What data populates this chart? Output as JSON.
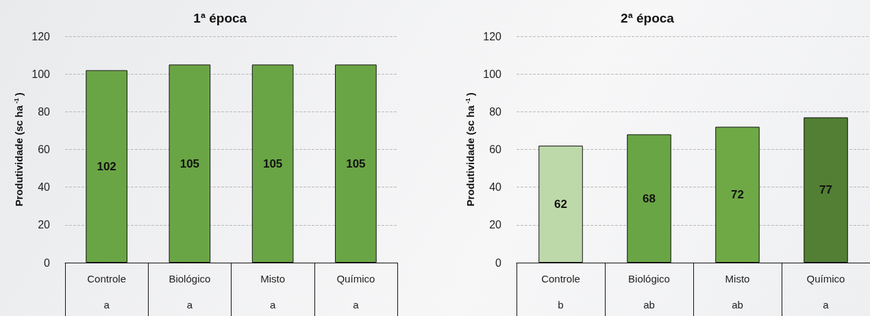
{
  "chart_data": [
    {
      "type": "bar",
      "title": "1ª época",
      "ylabel": "Produtividade (sc ha$^{-1}$)",
      "categories": [
        "Controle",
        "Biológico",
        "Misto",
        "Químico"
      ],
      "values": [
        102,
        105,
        105,
        105
      ],
      "colors": [
        "#6aa545",
        "#6aa545",
        "#6aa545",
        "#6aa545"
      ],
      "ylim": [
        0,
        120
      ],
      "yticks": [
        0,
        20,
        40,
        60,
        80,
        100,
        120
      ],
      "grid": "y",
      "data_labels": true,
      "annotations": [
        "a",
        "a",
        "a",
        "a"
      ]
    },
    {
      "type": "bar",
      "title": "2ª época",
      "ylabel": "Produtividade (sc ha$^{-1}$)",
      "categories": [
        "Controle",
        "Biológico",
        "Misto",
        "Químico"
      ],
      "values": [
        62,
        68,
        72,
        77
      ],
      "colors": [
        "#bdd9aa",
        "#6aa545",
        "#6fa946",
        "#527f34"
      ],
      "ylim": [
        0,
        120
      ],
      "yticks": [
        0,
        20,
        40,
        60,
        80,
        100,
        120
      ],
      "grid": "y",
      "data_labels": true,
      "annotations": [
        "b",
        "ab",
        "ab",
        "a"
      ]
    }
  ]
}
